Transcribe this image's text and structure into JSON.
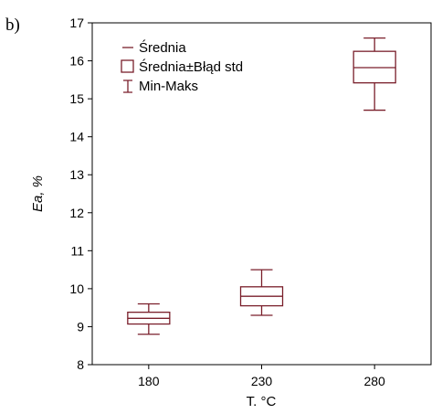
{
  "panel_label": "b)",
  "colors": {
    "series": "#7a1f2b",
    "axis": "#000000"
  },
  "chart_data": {
    "type": "box",
    "xlabel": "T. °C",
    "ylabel": "Ea, %",
    "ylim": [
      8,
      17
    ],
    "yticks": [
      8,
      9,
      10,
      11,
      12,
      13,
      14,
      15,
      16,
      17
    ],
    "categories": [
      "180",
      "230",
      "280"
    ],
    "boxes": [
      {
        "category": "180",
        "mean": 9.22,
        "se_low": 9.07,
        "se_high": 9.38,
        "min": 8.8,
        "max": 9.6
      },
      {
        "category": "230",
        "mean": 9.8,
        "se_low": 9.55,
        "se_high": 10.05,
        "min": 9.3,
        "max": 10.5
      },
      {
        "category": "280",
        "mean": 15.82,
        "se_low": 15.42,
        "se_high": 16.25,
        "min": 14.7,
        "max": 16.6
      }
    ],
    "legend": {
      "position": "top-left",
      "items": [
        {
          "symbol": "mean",
          "label": "Średnia"
        },
        {
          "symbol": "box",
          "label": "Średnia±Błąd std"
        },
        {
          "symbol": "whisker",
          "label": "Min-Maks"
        }
      ]
    },
    "grid": false
  }
}
